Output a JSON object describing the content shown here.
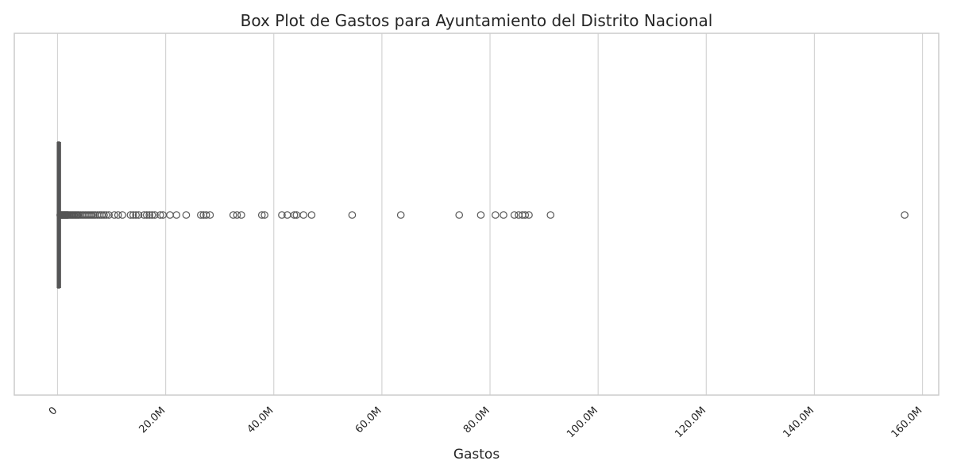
{
  "chart_data": {
    "type": "box",
    "title": "Box Plot de Gastos para Ayuntamiento del Distrito Nacional",
    "xlabel": "Gastos",
    "ylabel": "",
    "orientation": "horizontal",
    "xlim": [
      -8000000,
      163000000
    ],
    "xticks": [
      {
        "value": 0,
        "label": "0"
      },
      {
        "value": 20000000,
        "label": "20.0M"
      },
      {
        "value": 40000000,
        "label": "40.0M"
      },
      {
        "value": 60000000,
        "label": "60.0M"
      },
      {
        "value": 80000000,
        "label": "80.0M"
      },
      {
        "value": 100000000,
        "label": "100.0M"
      },
      {
        "value": 120000000,
        "label": "120.0M"
      },
      {
        "value": 140000000,
        "label": "140.0M"
      },
      {
        "value": 160000000,
        "label": "160.0M"
      }
    ],
    "grid": true,
    "box": {
      "whisker_low": 0,
      "q1": 60000,
      "median": 130000,
      "q3": 350000,
      "whisker_high": 500000
    },
    "outliers": [
      500000,
      600000,
      700000,
      800000,
      900000,
      1000000,
      1100000,
      1200000,
      1300000,
      1400000,
      1500000,
      1600000,
      1700000,
      1800000,
      1900000,
      2000000,
      2200000,
      2400000,
      2600000,
      2800000,
      3000000,
      3200000,
      3400000,
      3600000,
      3800000,
      4000000,
      4300000,
      4600000,
      4900000,
      5200000,
      5500000,
      5800000,
      6100000,
      6400000,
      6700000,
      7000000,
      7400000,
      7800000,
      8200000,
      8600000,
      9000000,
      9500000,
      10500000,
      11200000,
      12000000,
      13500000,
      14000000,
      14500000,
      15000000,
      16000000,
      16500000,
      17000000,
      17500000,
      18000000,
      19000000,
      19500000,
      20800000,
      22000000,
      23800000,
      26500000,
      27000000,
      27500000,
      28200000,
      32500000,
      33200000,
      34000000,
      37800000,
      38300000,
      41500000,
      42500000,
      43800000,
      44200000,
      45500000,
      47000000,
      54500000,
      63500000,
      74300000,
      78300000,
      81000000,
      82500000,
      84500000,
      85300000,
      86000000,
      86500000,
      87200000,
      91200000,
      156700000
    ],
    "colors": {
      "box_fill": "#4a76b2",
      "stroke": "#555555",
      "grid": "#d4d4d4",
      "frame": "#cccccc"
    }
  }
}
